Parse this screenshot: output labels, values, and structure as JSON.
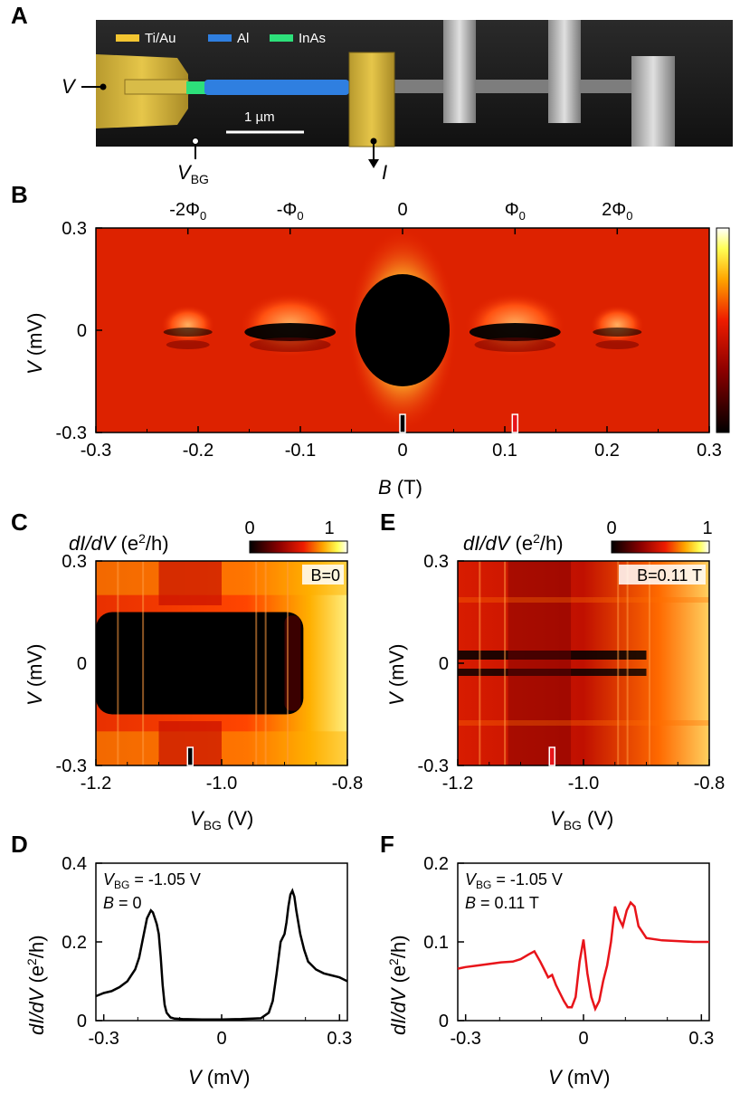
{
  "panels": {
    "a": "A",
    "b": "B",
    "c": "C",
    "d": "D",
    "e": "E",
    "f": "F"
  },
  "panel_a": {
    "legend": [
      {
        "label": "Ti/Au",
        "color": "#f2c531"
      },
      {
        "label": "Al",
        "color": "#2f7fe0"
      },
      {
        "label": "InAs",
        "color": "#2de07a"
      }
    ],
    "scale_bar": "1 µm",
    "label_v": "V",
    "label_vbg_main": "V",
    "label_vbg_sub": "BG",
    "label_i": "I"
  },
  "chart_data": [
    {
      "id": "B",
      "type": "heatmap",
      "xlabel_var": "B",
      "xlabel_unit": " (T)",
      "ylabel_var": "V",
      "ylabel_unit": " (mV)",
      "xlim": [
        -0.3,
        0.3
      ],
      "ylim": [
        -0.3,
        0.3
      ],
      "x_ticks": [
        "-0.3",
        "-0.2",
        "-0.1",
        "0",
        "0.1",
        "0.2",
        "0.3"
      ],
      "y_ticks": [
        "0.3",
        "0",
        "-0.3"
      ],
      "top_ticks": [
        {
          "x": -0.21,
          "label": "-2Φ",
          "sub": "0"
        },
        {
          "x": -0.11,
          "label": "-Φ",
          "sub": "0"
        },
        {
          "x": 0.0,
          "label": "0",
          "sub": ""
        },
        {
          "x": 0.11,
          "label": "Φ",
          "sub": "0"
        },
        {
          "x": 0.21,
          "label": "2Φ",
          "sub": "0"
        }
      ],
      "lobes_B_T": [
        -0.21,
        -0.11,
        0.0,
        0.11,
        0.21
      ],
      "markers_B_T": [
        0.0,
        0.11
      ],
      "colormap": "black-red-yellow-white"
    },
    {
      "id": "C",
      "type": "heatmap",
      "title_var": "dI/dV",
      "title_unit": " (e",
      "title_sup": "2",
      "title_unit_end": "/h)",
      "colorbar_ticks": [
        "0",
        "1"
      ],
      "xlabel_var": "V",
      "xlabel_sub": "BG",
      "xlabel_unit": " (V)",
      "ylabel_var": "V",
      "ylabel_unit": " (mV)",
      "xlim": [
        -1.2,
        -0.8
      ],
      "ylim": [
        -0.3,
        0.3
      ],
      "x_ticks": [
        "-1.2",
        "-1.0",
        "-0.8"
      ],
      "y_ticks": [
        "0.3",
        "0",
        "-0.3"
      ],
      "annotation": "B=0",
      "marker_VBG_V": -1.05
    },
    {
      "id": "E",
      "type": "heatmap",
      "title_var": "dI/dV",
      "title_unit": " (e",
      "title_sup": "2",
      "title_unit_end": "/h)",
      "colorbar_ticks": [
        "0",
        "1"
      ],
      "xlabel_var": "V",
      "xlabel_sub": "BG",
      "xlabel_unit": " (V)",
      "ylabel_var": "V",
      "ylabel_unit": " (mV)",
      "xlim": [
        -1.2,
        -0.8
      ],
      "ylim": [
        -0.3,
        0.3
      ],
      "x_ticks": [
        "-1.2",
        "-1.0",
        "-0.8"
      ],
      "y_ticks": [
        "0.3",
        "0",
        "-0.3"
      ],
      "annotation": "B=0.11 T",
      "marker_VBG_V": -1.05
    },
    {
      "id": "D",
      "type": "line",
      "xlabel_var": "V",
      "xlabel_unit": " (mV)",
      "ylabel_var": "dI/dV",
      "ylabel_unit": " (e",
      "ylabel_sup": "2",
      "ylabel_unit_end": "/h)",
      "xlim": [
        -0.32,
        0.32
      ],
      "ylim": [
        0,
        0.4
      ],
      "x_ticks": [
        "-0.3",
        "0",
        "0.3"
      ],
      "y_ticks": [
        "0",
        "0.2",
        "0.4"
      ],
      "annotation_1": "V",
      "annotation_1_sub": "BG",
      "annotation_1_rest": " = -1.05 V",
      "annotation_2": "B",
      "annotation_2_rest": " = 0",
      "color": "#000000",
      "x": [
        -0.32,
        -0.3,
        -0.28,
        -0.26,
        -0.24,
        -0.22,
        -0.21,
        -0.2,
        -0.19,
        -0.18,
        -0.175,
        -0.17,
        -0.165,
        -0.16,
        -0.155,
        -0.15,
        -0.145,
        -0.14,
        -0.13,
        -0.12,
        -0.1,
        -0.05,
        0.0,
        0.05,
        0.1,
        0.12,
        0.13,
        0.14,
        0.15,
        0.155,
        0.16,
        0.165,
        0.17,
        0.175,
        0.18,
        0.185,
        0.19,
        0.2,
        0.21,
        0.22,
        0.24,
        0.26,
        0.28,
        0.3,
        0.32
      ],
      "y": [
        0.062,
        0.07,
        0.075,
        0.085,
        0.1,
        0.13,
        0.16,
        0.21,
        0.26,
        0.28,
        0.275,
        0.26,
        0.245,
        0.22,
        0.16,
        0.09,
        0.04,
        0.02,
        0.008,
        0.005,
        0.004,
        0.003,
        0.003,
        0.004,
        0.006,
        0.02,
        0.05,
        0.12,
        0.2,
        0.21,
        0.22,
        0.25,
        0.29,
        0.32,
        0.33,
        0.315,
        0.28,
        0.22,
        0.18,
        0.15,
        0.13,
        0.12,
        0.115,
        0.11,
        0.1
      ]
    },
    {
      "id": "F",
      "type": "line",
      "xlabel_var": "V",
      "xlabel_unit": " (mV)",
      "ylabel_var": "dI/dV",
      "ylabel_unit": " (e",
      "ylabel_sup": "2",
      "ylabel_unit_end": "/h)",
      "xlim": [
        -0.32,
        0.32
      ],
      "ylim": [
        0,
        0.2
      ],
      "x_ticks": [
        "-0.3",
        "0",
        "0.3"
      ],
      "y_ticks": [
        "0",
        "0.1",
        "0.2"
      ],
      "annotation_1": "V",
      "annotation_1_sub": "BG",
      "annotation_1_rest": " = -1.05 V",
      "annotation_2": "B",
      "annotation_2_rest": " = 0.11 T",
      "color": "#e8141a",
      "x": [
        -0.32,
        -0.3,
        -0.27,
        -0.24,
        -0.21,
        -0.18,
        -0.16,
        -0.14,
        -0.125,
        -0.11,
        -0.1,
        -0.09,
        -0.08,
        -0.07,
        -0.06,
        -0.05,
        -0.04,
        -0.03,
        -0.02,
        -0.01,
        0.0,
        0.01,
        0.02,
        0.03,
        0.04,
        0.05,
        0.06,
        0.07,
        0.08,
        0.09,
        0.1,
        0.11,
        0.12,
        0.13,
        0.14,
        0.16,
        0.2,
        0.24,
        0.28,
        0.32
      ],
      "y": [
        0.066,
        0.068,
        0.07,
        0.072,
        0.074,
        0.075,
        0.078,
        0.084,
        0.088,
        0.075,
        0.065,
        0.055,
        0.058,
        0.045,
        0.035,
        0.025,
        0.017,
        0.017,
        0.03,
        0.075,
        0.103,
        0.06,
        0.03,
        0.015,
        0.025,
        0.05,
        0.07,
        0.1,
        0.145,
        0.13,
        0.12,
        0.14,
        0.15,
        0.145,
        0.12,
        0.105,
        0.102,
        0.101,
        0.1,
        0.1
      ]
    }
  ]
}
